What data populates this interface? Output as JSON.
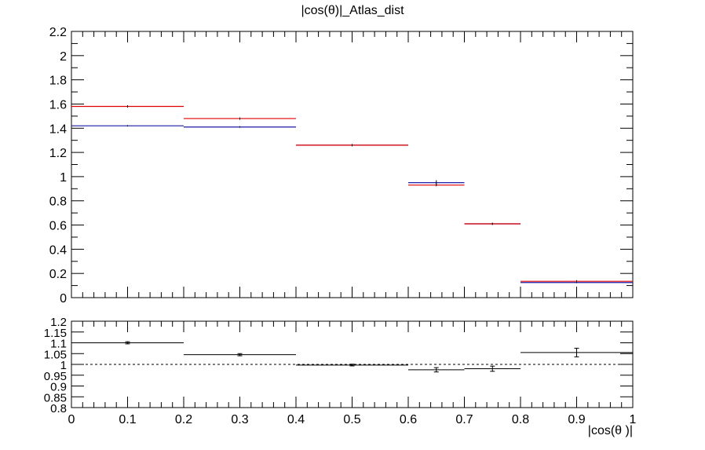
{
  "chart_data": [
    {
      "panel": "main",
      "type": "step",
      "title": "|cos(θ)|_Atlas_dist",
      "xlabel": "",
      "ylabel": "",
      "xlim": [
        0,
        1
      ],
      "ylim": [
        0,
        2.2
      ],
      "bin_edges": [
        0,
        0.2,
        0.4,
        0.6,
        0.7,
        0.8,
        1.0
      ],
      "bin_centers": [
        0.1,
        0.3,
        0.5,
        0.65,
        0.75,
        0.9
      ],
      "x_ticks": [
        0,
        0.1,
        0.2,
        0.3,
        0.4,
        0.5,
        0.6,
        0.7,
        0.8,
        0.9,
        1
      ],
      "y_ticks": [
        0,
        0.2,
        0.4,
        0.6,
        0.8,
        1,
        1.2,
        1.4,
        1.6,
        1.8,
        2,
        2.2
      ],
      "y_tick_labels": [
        "0",
        "0.2",
        "0.4",
        "0.6",
        "0.8",
        "1",
        "1.2",
        "1.4",
        "1.6",
        "1.8",
        "2",
        "2.2"
      ],
      "series": [
        {
          "color": "#1a1aa8",
          "values": [
            1.42,
            1.41,
            1.26,
            0.95,
            0.61,
            0.125
          ],
          "errors": [
            0.005,
            0.006,
            0.006,
            0.02,
            0.006,
            0.005
          ]
        },
        {
          "color": "#e00000",
          "values": [
            1.58,
            1.48,
            1.26,
            0.93,
            0.61,
            0.135
          ],
          "errors": [
            0,
            0,
            0,
            0,
            0,
            0
          ]
        }
      ],
      "grid": false
    },
    {
      "panel": "ratio",
      "type": "step",
      "xlabel": "|cos(θ )|",
      "xlim": [
        0,
        1
      ],
      "ylim": [
        0.8,
        1.2
      ],
      "bin_edges": [
        0,
        0.2,
        0.4,
        0.6,
        0.7,
        0.8,
        1.0
      ],
      "bin_centers": [
        0.1,
        0.3,
        0.5,
        0.65,
        0.75,
        0.9
      ],
      "values": [
        1.1,
        1.045,
        0.997,
        0.975,
        0.98,
        1.055
      ],
      "errors": [
        0.005,
        0.005,
        0.004,
        0.01,
        0.012,
        0.02
      ],
      "reference_line": 1.0,
      "x_ticks": [
        0,
        0.1,
        0.2,
        0.3,
        0.4,
        0.5,
        0.6,
        0.7,
        0.8,
        0.9,
        1
      ],
      "x_tick_labels": [
        "0",
        "0.1",
        "0.2",
        "0.3",
        "0.4",
        "0.5",
        "0.6",
        "0.7",
        "0.8",
        "0.9",
        "1"
      ],
      "y_ticks": [
        0.8,
        0.85,
        0.9,
        0.95,
        1,
        1.05,
        1.1,
        1.15,
        1.2
      ],
      "y_tick_labels": [
        "0.8",
        "0.85",
        "0.9",
        "0.95",
        "1",
        "1.05",
        "1.1",
        "1.15",
        "1.2"
      ],
      "grid": false
    }
  ]
}
